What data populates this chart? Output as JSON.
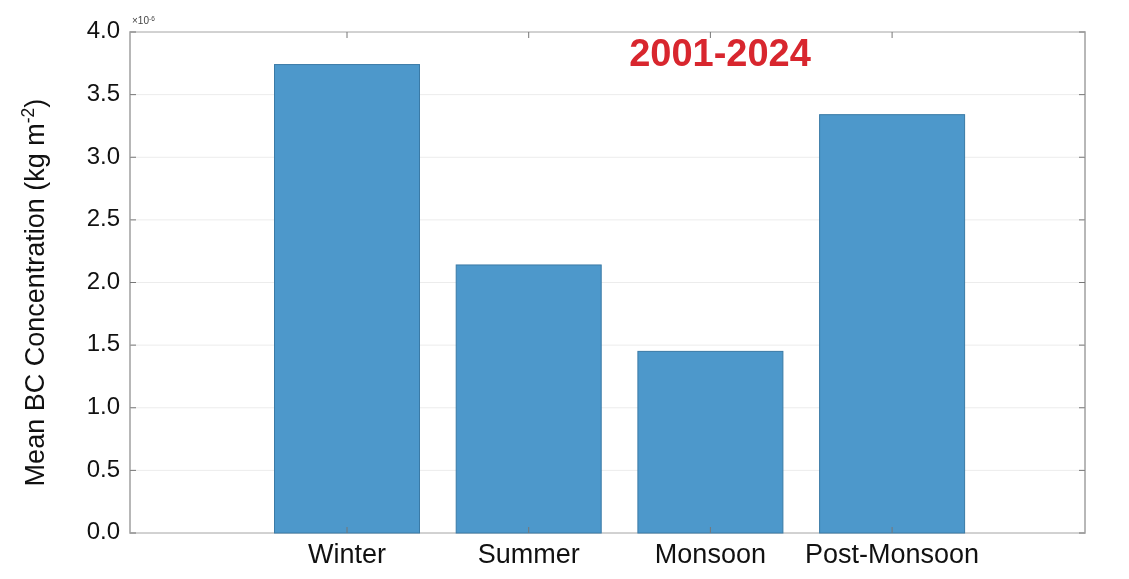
{
  "chart_data": {
    "type": "bar",
    "title": "2001-2024",
    "ylabel": "Mean BC Concentration (kg m$^{-2}$)",
    "annotations": [
      "×10$^{-6}$"
    ],
    "categories": [
      "Winter",
      "Summer",
      "Monsoon",
      "Post-Monsoon"
    ],
    "values": [
      3.74,
      2.14,
      1.45,
      3.34
    ],
    "color": "#4d98cb",
    "ylim": [
      0,
      4
    ],
    "yticks": [
      {
        "value": 0,
        "label": "0.0"
      },
      0.5,
      {
        "value": 1,
        "label": "1.0"
      },
      1.5,
      {
        "value": 2,
        "label": "2.0"
      },
      2.5,
      {
        "value": 3,
        "label": "3.0"
      },
      3.5,
      {
        "value": 4,
        "label": "4.0"
      }
    ],
    "grid": "y"
  }
}
